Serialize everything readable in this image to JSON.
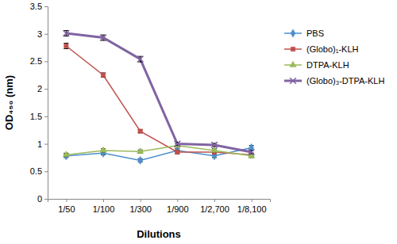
{
  "chart_data": {
    "type": "line",
    "x_label": "Dilutions",
    "y_label": "OD₄₅₀ (nm)",
    "categories": [
      "1/50",
      "1/100",
      "1/300",
      "1/900",
      "1/2,700",
      "1/8,100"
    ],
    "ylim": [
      0,
      3.5
    ],
    "yticks": [
      0,
      0.5,
      1,
      1.5,
      2,
      2.5,
      3,
      3.5
    ],
    "grid": false,
    "legend": "right",
    "series": [
      {
        "name": "PBS",
        "color": "#4a8fcf",
        "marker": "diamond",
        "values": [
          0.78,
          0.83,
          0.7,
          0.88,
          0.78,
          0.93
        ],
        "errors": [
          0.03,
          0.03,
          0.03,
          0.03,
          0.03,
          0.04
        ]
      },
      {
        "name": "(Globo)₁-KLH",
        "color": "#c0504d",
        "marker": "square",
        "values": [
          2.78,
          2.25,
          1.23,
          0.85,
          0.85,
          0.8
        ],
        "errors": [
          0.05,
          0.04,
          0.03,
          0.03,
          0.03,
          0.03
        ]
      },
      {
        "name": "DTPA-KLH",
        "color": "#9bbb59",
        "marker": "triangle",
        "values": [
          0.8,
          0.88,
          0.86,
          0.97,
          0.88,
          0.78
        ],
        "errors": [
          0.03,
          0.03,
          0.03,
          0.03,
          0.03,
          0.03
        ]
      },
      {
        "name": "(Globo)₃-DTPA-KLH",
        "color": "#8064a2",
        "marker": "x",
        "values": [
          3.01,
          2.93,
          2.54,
          1.0,
          0.98,
          0.85
        ],
        "errors": [
          0.05,
          0.05,
          0.05,
          0.03,
          0.03,
          0.03
        ]
      }
    ]
  }
}
